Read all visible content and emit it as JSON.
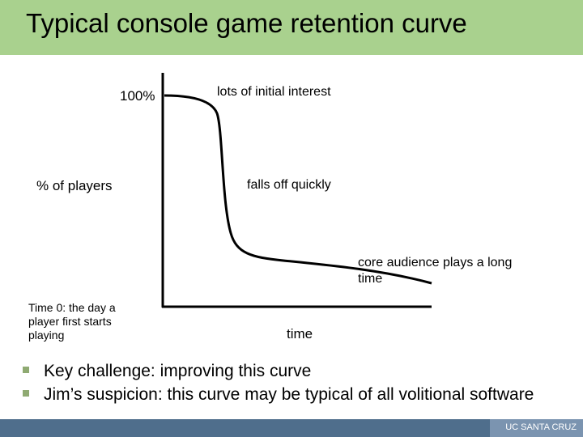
{
  "slide": {
    "title": "Typical console game retention curve",
    "footer": "UC SANTA CRUZ"
  },
  "diagram": {
    "y_tick_label": "100%",
    "y_axis_label": "% of players",
    "x_axis_label": "time",
    "origin_note_lines": [
      "Time 0: the day a",
      "player first starts",
      "playing"
    ],
    "annotations": {
      "initial": "lots of initial interest",
      "falloff": "falls off quickly",
      "core_lines": [
        "core audience plays a long",
        "time"
      ]
    }
  },
  "bullets": [
    "Key challenge: improving this curve",
    "Jim’s suspicion: this curve may be typical of all volitional software"
  ],
  "colors": {
    "title_bar": "#a9d18e",
    "bullet": "#8faa72",
    "footer": "#4f6e8c"
  }
}
